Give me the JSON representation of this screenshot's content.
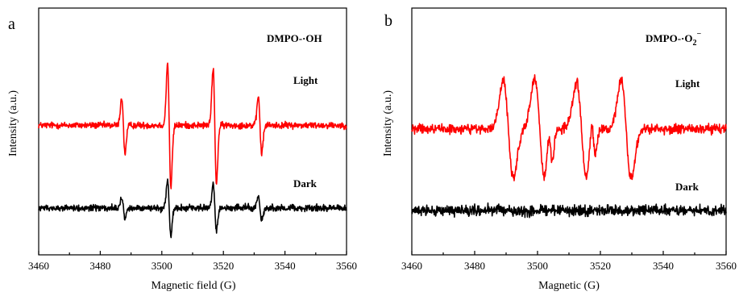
{
  "chart_data": [
    {
      "type": "line",
      "panel_label": "a",
      "xlabel": "Magnetic field (G)",
      "ylabel": "Intensity (a.u.)",
      "xlim": [
        3460,
        3560
      ],
      "xticks": [
        "3460",
        "3480",
        "3500",
        "3520",
        "3540",
        "3560"
      ],
      "annotation": "DMPO-·OH",
      "y_scale": "arbitrary units, offset traces",
      "grid": false,
      "series": [
        {
          "name": "Light",
          "color": "#ff0000",
          "offset": 10.5,
          "noise": 0.22,
          "peaks": [
            {
              "center": 3487.5,
              "amplitude": 3.2,
              "width": 0.55
            },
            {
              "center": 3502.4,
              "amplitude": 7.1,
              "width": 0.55
            },
            {
              "center": 3517.2,
              "amplitude": 6.6,
              "width": 0.55
            },
            {
              "center": 3531.9,
              "amplitude": 3.3,
              "width": 0.55
            }
          ]
        },
        {
          "name": "Dark",
          "color": "#000000",
          "offset": 3.8,
          "noise": 0.22,
          "peaks": [
            {
              "center": 3487.5,
              "amplitude": 1.2,
              "width": 0.55
            },
            {
              "center": 3502.4,
              "amplitude": 3.1,
              "width": 0.55
            },
            {
              "center": 3517.2,
              "amplitude": 2.7,
              "width": 0.55
            },
            {
              "center": 3531.9,
              "amplitude": 1.4,
              "width": 0.55
            }
          ]
        }
      ]
    },
    {
      "type": "line",
      "panel_label": "b",
      "xlabel": "Magnetic (G)",
      "ylabel": "Intensity (a.u.)",
      "xlim": [
        3460,
        3560
      ],
      "xticks": [
        "3460",
        "3480",
        "3500",
        "3520",
        "3540",
        "3560"
      ],
      "annotation": "DMPO-·O₂⁻",
      "annotation_parts": {
        "base": "DMPO-·O",
        "sub": "2",
        "sup": "−"
      },
      "y_scale": "arbitrary units, offset traces",
      "grid": false,
      "series": [
        {
          "name": "Light",
          "color": "#ff0000",
          "offset": 10.2,
          "noise": 0.32,
          "peaks": [
            {
              "center": 3490.7,
              "amplitude": 5.6,
              "width": 1.6
            },
            {
              "center": 3500.7,
              "amplitude": 5.8,
              "width": 1.6
            },
            {
              "center": 3504.1,
              "amplitude": 2.6,
              "width": 0.7
            },
            {
              "center": 3514.0,
              "amplitude": 5.4,
              "width": 1.6
            },
            {
              "center": 3517.8,
              "amplitude": 2.4,
              "width": 0.7
            },
            {
              "center": 3528.2,
              "amplitude": 5.6,
              "width": 1.6
            }
          ]
        },
        {
          "name": "Dark",
          "color": "#000000",
          "offset": 3.6,
          "noise": 0.35,
          "peaks": []
        }
      ]
    }
  ]
}
